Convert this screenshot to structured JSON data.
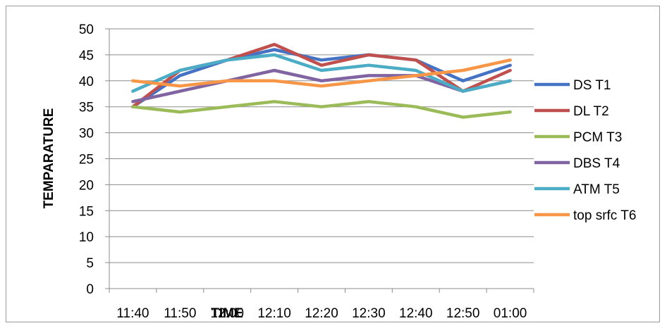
{
  "chart_data": {
    "type": "line",
    "title": "",
    "xlabel": "TIME",
    "ylabel": "TEMPARATURE",
    "categories": [
      "11:40",
      "11:50",
      "12:00",
      "12:10",
      "12:20",
      "12:30",
      "12:40",
      "12:50",
      "01:00"
    ],
    "ylim": [
      0,
      50
    ],
    "yticks": [
      0,
      5,
      10,
      15,
      20,
      25,
      30,
      35,
      40,
      45,
      50
    ],
    "grid": "horizontal",
    "legend_position": "right",
    "series": [
      {
        "name": "DS T1",
        "color": "#4472C4",
        "values": [
          35,
          41,
          44,
          46,
          44,
          45,
          44,
          40,
          43
        ]
      },
      {
        "name": "DL T2",
        "color": "#C0504D",
        "values": [
          35,
          42,
          44,
          47,
          43,
          45,
          44,
          38,
          42
        ]
      },
      {
        "name": "PCM T3",
        "color": "#9BBB59",
        "values": [
          35,
          34,
          35,
          36,
          35,
          36,
          35,
          33,
          34
        ]
      },
      {
        "name": "DBS T4",
        "color": "#8064A2",
        "values": [
          36,
          38,
          40,
          42,
          40,
          41,
          41,
          38,
          40
        ]
      },
      {
        "name": "ATM T5",
        "color": "#4BACC6",
        "values": [
          38,
          42,
          44,
          45,
          42,
          43,
          42,
          38,
          40
        ]
      },
      {
        "name": "top srfc T6",
        "color": "#F79646",
        "values": [
          40,
          39,
          40,
          40,
          39,
          40,
          41,
          42,
          44
        ]
      }
    ]
  }
}
